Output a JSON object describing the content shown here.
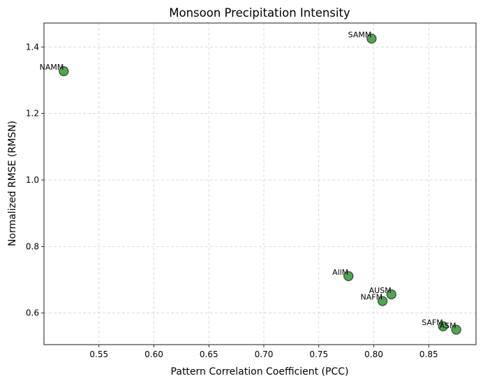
{
  "chart_data": {
    "type": "scatter",
    "title": "Monsoon Precipitation Intensity",
    "xlabel": "Pattern Correlation Coefficient (PCC)",
    "ylabel": "Normalized RMSE (RMSN)",
    "xlim": [
      0.5,
      0.893
    ],
    "ylim": [
      0.505,
      1.472
    ],
    "x_ticks": [
      0.55,
      0.6,
      0.65,
      0.7,
      0.75,
      0.8,
      0.85
    ],
    "x_tick_labels": [
      "0.55",
      "0.60",
      "0.65",
      "0.70",
      "0.75",
      "0.80",
      "0.85"
    ],
    "y_ticks": [
      0.6,
      0.8,
      1.0,
      1.2,
      1.4
    ],
    "y_tick_labels": [
      "0.6",
      "0.8",
      "1.0",
      "1.2",
      "1.4"
    ],
    "grid": true,
    "marker_color": "#4a9e4a",
    "marker_edge_color": "#2e4a2e",
    "points": [
      {
        "label": "NAMM",
        "x": 0.518,
        "y": 1.327
      },
      {
        "label": "SAMM",
        "x": 0.798,
        "y": 1.425
      },
      {
        "label": "AllM",
        "x": 0.777,
        "y": 0.711
      },
      {
        "label": "AUSM",
        "x": 0.816,
        "y": 0.656
      },
      {
        "label": "NAFM",
        "x": 0.808,
        "y": 0.636
      },
      {
        "label": "SAFM",
        "x": 0.863,
        "y": 0.56
      },
      {
        "label": "ASM",
        "x": 0.875,
        "y": 0.55
      }
    ]
  }
}
